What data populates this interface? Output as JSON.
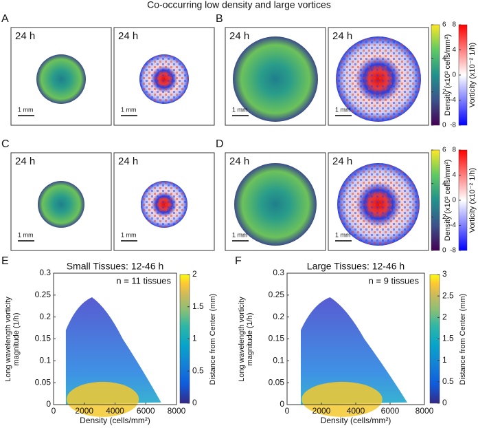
{
  "title": "Co-occurring low density and large vortices",
  "panels": [
    {
      "letter": "A",
      "images": [
        {
          "time": "24 h",
          "scale": "1 mm"
        },
        {
          "time": "24 h",
          "scale": "1 mm"
        }
      ]
    },
    {
      "letter": "B",
      "images": [
        {
          "time": "24 h",
          "scale": "1 mm"
        },
        {
          "time": "24 h",
          "scale": "1 mm"
        }
      ]
    },
    {
      "letter": "C",
      "images": [
        {
          "time": "24 h",
          "scale": "1 mm"
        },
        {
          "time": "24 h",
          "scale": "1 mm"
        }
      ]
    },
    {
      "letter": "D",
      "images": [
        {
          "time": "24 h",
          "scale": "1 mm"
        },
        {
          "time": "24 h",
          "scale": "1 mm"
        }
      ]
    }
  ],
  "colorbars": {
    "density": {
      "label": "Density (x10³ cells/mm²)",
      "lim": [
        0,
        6
      ],
      "ticks": [
        0,
        2,
        4,
        6
      ]
    },
    "vorticity": {
      "label": "Vorticity (x10⁻² 1/h)",
      "lim": [
        -8,
        8
      ],
      "ticks": [
        -8,
        -4,
        0,
        4,
        8
      ]
    }
  },
  "charts": [
    {
      "letter": "E",
      "type": "scatter",
      "title": "Small Tissues: 12-46 h",
      "annotation": "n = 11 tissues",
      "xlabel": "Density (cells/mm²)",
      "ylabel": "Long wavelength vorticity magnitude (1/h)",
      "xlim": [
        0,
        8000
      ],
      "xticks": [
        0,
        2000,
        4000,
        6000,
        8000
      ],
      "ylim": [
        0,
        0.3
      ],
      "yticks": [
        0,
        0.05,
        0.1,
        0.15,
        0.2,
        0.25,
        0.3
      ],
      "colorbar": {
        "label": "Distance from Center (mm)",
        "lim": [
          0,
          2
        ],
        "ticks": [
          0,
          0.5,
          1,
          1.5,
          2
        ]
      }
    },
    {
      "letter": "F",
      "type": "scatter",
      "title": "Large Tissues: 12-46 h",
      "annotation": "n = 9 tissues",
      "xlabel": "Density (cells/mm²)",
      "ylabel": "Long wavelength vorticity magnitude (1/h)",
      "xlim": [
        0,
        8000
      ],
      "xticks": [
        0,
        2000,
        4000,
        6000,
        8000
      ],
      "ylim": [
        0,
        0.3
      ],
      "yticks": [
        0,
        0.05,
        0.1,
        0.15,
        0.2,
        0.25,
        0.3
      ],
      "colorbar": {
        "label": "Distance from Center (mm)",
        "lim": [
          0,
          3
        ],
        "ticks": [
          0,
          0.5,
          1,
          1.5,
          2,
          2.5,
          3
        ]
      }
    }
  ]
}
